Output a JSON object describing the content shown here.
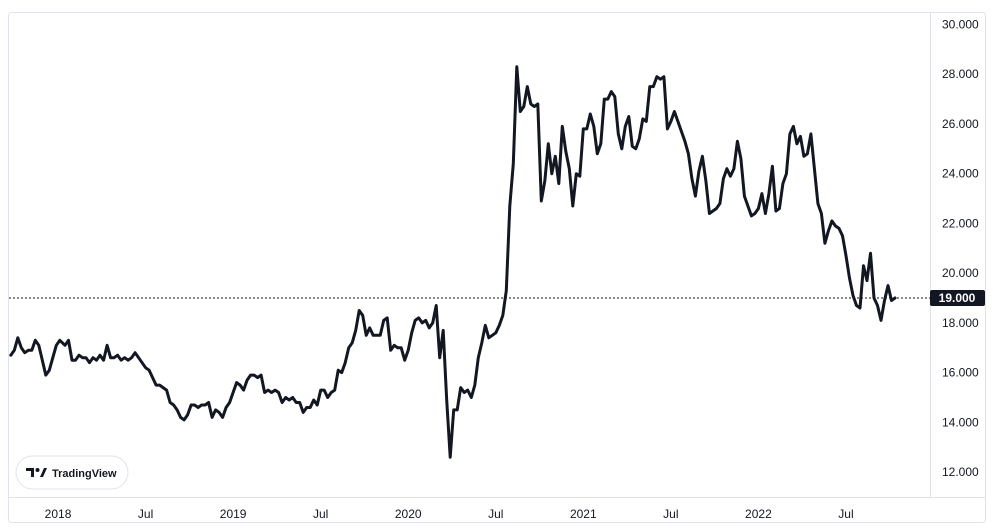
{
  "chart_data": {
    "type": "line",
    "title": "",
    "xlabel": "",
    "ylabel": "",
    "ylim": [
      11000,
      30500
    ],
    "xlim": [
      2017.72,
      2022.98
    ],
    "grid": false,
    "legend": "none",
    "x_tick_labels": [
      {
        "label": "2018",
        "x": 2018.0
      },
      {
        "label": "Jul",
        "x": 2018.5
      },
      {
        "label": "2019",
        "x": 2019.0
      },
      {
        "label": "Jul",
        "x": 2019.5
      },
      {
        "label": "2020",
        "x": 2020.0
      },
      {
        "label": "Jul",
        "x": 2020.5
      },
      {
        "label": "2021",
        "x": 2021.0
      },
      {
        "label": "Jul",
        "x": 2021.5
      },
      {
        "label": "2022",
        "x": 2022.0
      },
      {
        "label": "Jul",
        "x": 2022.5
      }
    ],
    "y_tick_labels": [
      {
        "label": "12.000",
        "y": 12000
      },
      {
        "label": "14.000",
        "y": 14000
      },
      {
        "label": "16.000",
        "y": 16000
      },
      {
        "label": "18.000",
        "y": 18000
      },
      {
        "label": "20.000",
        "y": 20000
      },
      {
        "label": "22.000",
        "y": 22000
      },
      {
        "label": "24.000",
        "y": 24000
      },
      {
        "label": "26.000",
        "y": 26000
      },
      {
        "label": "28.000",
        "y": 28000
      },
      {
        "label": "30.000",
        "y": 30000
      }
    ],
    "last_price": {
      "label": "19.000",
      "value": 19000
    },
    "series": [
      {
        "color": "#131722",
        "points": [
          [
            2017.73,
            16700
          ],
          [
            2017.75,
            16900
          ],
          [
            2017.77,
            17400
          ],
          [
            2017.79,
            17000
          ],
          [
            2017.81,
            16800
          ],
          [
            2017.83,
            16900
          ],
          [
            2017.85,
            16900
          ],
          [
            2017.87,
            17300
          ],
          [
            2017.89,
            17100
          ],
          [
            2017.91,
            16500
          ],
          [
            2017.93,
            15900
          ],
          [
            2017.95,
            16100
          ],
          [
            2017.97,
            16600
          ],
          [
            2017.99,
            17100
          ],
          [
            2018.01,
            17300
          ],
          [
            2018.04,
            17100
          ],
          [
            2018.06,
            17300
          ],
          [
            2018.08,
            16500
          ],
          [
            2018.1,
            16500
          ],
          [
            2018.12,
            16700
          ],
          [
            2018.14,
            16600
          ],
          [
            2018.16,
            16600
          ],
          [
            2018.18,
            16400
          ],
          [
            2018.2,
            16600
          ],
          [
            2018.22,
            16500
          ],
          [
            2018.24,
            16700
          ],
          [
            2018.26,
            16500
          ],
          [
            2018.28,
            17100
          ],
          [
            2018.3,
            16600
          ],
          [
            2018.32,
            16600
          ],
          [
            2018.34,
            16700
          ],
          [
            2018.36,
            16500
          ],
          [
            2018.38,
            16600
          ],
          [
            2018.4,
            16500
          ],
          [
            2018.42,
            16600
          ],
          [
            2018.44,
            16800
          ],
          [
            2018.46,
            16600
          ],
          [
            2018.48,
            16400
          ],
          [
            2018.5,
            16200
          ],
          [
            2018.52,
            16100
          ],
          [
            2018.54,
            15800
          ],
          [
            2018.56,
            15500
          ],
          [
            2018.58,
            15500
          ],
          [
            2018.6,
            15400
          ],
          [
            2018.62,
            15300
          ],
          [
            2018.64,
            14800
          ],
          [
            2018.66,
            14700
          ],
          [
            2018.68,
            14500
          ],
          [
            2018.7,
            14200
          ],
          [
            2018.72,
            14100
          ],
          [
            2018.74,
            14300
          ],
          [
            2018.76,
            14700
          ],
          [
            2018.78,
            14700
          ],
          [
            2018.8,
            14600
          ],
          [
            2018.82,
            14700
          ],
          [
            2018.84,
            14700
          ],
          [
            2018.86,
            14800
          ],
          [
            2018.88,
            14200
          ],
          [
            2018.9,
            14500
          ],
          [
            2018.92,
            14400
          ],
          [
            2018.94,
            14200
          ],
          [
            2018.96,
            14600
          ],
          [
            2018.98,
            14800
          ],
          [
            2019.0,
            15200
          ],
          [
            2019.02,
            15600
          ],
          [
            2019.04,
            15500
          ],
          [
            2019.06,
            15300
          ],
          [
            2019.08,
            15700
          ],
          [
            2019.1,
            15900
          ],
          [
            2019.12,
            15900
          ],
          [
            2019.14,
            15800
          ],
          [
            2019.16,
            15900
          ],
          [
            2019.18,
            15200
          ],
          [
            2019.2,
            15300
          ],
          [
            2019.22,
            15200
          ],
          [
            2019.24,
            15300
          ],
          [
            2019.26,
            15200
          ],
          [
            2019.28,
            14800
          ],
          [
            2019.3,
            15000
          ],
          [
            2019.32,
            14900
          ],
          [
            2019.34,
            15000
          ],
          [
            2019.36,
            14800
          ],
          [
            2019.38,
            14800
          ],
          [
            2019.4,
            14400
          ],
          [
            2019.42,
            14600
          ],
          [
            2019.44,
            14600
          ],
          [
            2019.46,
            14900
          ],
          [
            2019.48,
            14700
          ],
          [
            2019.5,
            15300
          ],
          [
            2019.52,
            15300
          ],
          [
            2019.54,
            15000
          ],
          [
            2019.56,
            15200
          ],
          [
            2019.58,
            15300
          ],
          [
            2019.6,
            16100
          ],
          [
            2019.62,
            16000
          ],
          [
            2019.64,
            16400
          ],
          [
            2019.66,
            17000
          ],
          [
            2019.68,
            17200
          ],
          [
            2019.7,
            17700
          ],
          [
            2019.72,
            18500
          ],
          [
            2019.74,
            18300
          ],
          [
            2019.76,
            17500
          ],
          [
            2019.78,
            17800
          ],
          [
            2019.8,
            17500
          ],
          [
            2019.82,
            17500
          ],
          [
            2019.84,
            17500
          ],
          [
            2019.86,
            18100
          ],
          [
            2019.88,
            18200
          ],
          [
            2019.9,
            16900
          ],
          [
            2019.92,
            17100
          ],
          [
            2019.94,
            17000
          ],
          [
            2019.96,
            17000
          ],
          [
            2019.98,
            16500
          ],
          [
            2020.0,
            16900
          ],
          [
            2020.02,
            17600
          ],
          [
            2020.04,
            18100
          ],
          [
            2020.06,
            18200
          ],
          [
            2020.08,
            18000
          ],
          [
            2020.1,
            18100
          ],
          [
            2020.12,
            17800
          ],
          [
            2020.14,
            18000
          ],
          [
            2020.16,
            18700
          ],
          [
            2020.18,
            16600
          ],
          [
            2020.2,
            17700
          ],
          [
            2020.22,
            14900
          ],
          [
            2020.24,
            12600
          ],
          [
            2020.26,
            14500
          ],
          [
            2020.28,
            14500
          ],
          [
            2020.3,
            15400
          ],
          [
            2020.32,
            15200
          ],
          [
            2020.34,
            15300
          ],
          [
            2020.36,
            15000
          ],
          [
            2020.38,
            15500
          ],
          [
            2020.4,
            16600
          ],
          [
            2020.42,
            17200
          ],
          [
            2020.44,
            17900
          ],
          [
            2020.46,
            17400
          ],
          [
            2020.48,
            17500
          ],
          [
            2020.5,
            17600
          ],
          [
            2020.52,
            17900
          ],
          [
            2020.54,
            18300
          ],
          [
            2020.56,
            19300
          ],
          [
            2020.58,
            22700
          ],
          [
            2020.6,
            24400
          ],
          [
            2020.62,
            28300
          ],
          [
            2020.64,
            26500
          ],
          [
            2020.66,
            26700
          ],
          [
            2020.68,
            27500
          ],
          [
            2020.7,
            26800
          ],
          [
            2020.72,
            26700
          ],
          [
            2020.74,
            26800
          ],
          [
            2020.76,
            22900
          ],
          [
            2020.78,
            23700
          ],
          [
            2020.8,
            25200
          ],
          [
            2020.82,
            24000
          ],
          [
            2020.84,
            24700
          ],
          [
            2020.86,
            23600
          ],
          [
            2020.88,
            25900
          ],
          [
            2020.9,
            24900
          ],
          [
            2020.92,
            24200
          ],
          [
            2020.94,
            22700
          ],
          [
            2020.96,
            24000
          ],
          [
            2020.98,
            23900
          ],
          [
            2021.0,
            25800
          ],
          [
            2021.02,
            25800
          ],
          [
            2021.04,
            26400
          ],
          [
            2021.06,
            25900
          ],
          [
            2021.08,
            24800
          ],
          [
            2021.1,
            25200
          ],
          [
            2021.12,
            27000
          ],
          [
            2021.14,
            27000
          ],
          [
            2021.16,
            27300
          ],
          [
            2021.18,
            27100
          ],
          [
            2021.2,
            25600
          ],
          [
            2021.22,
            25000
          ],
          [
            2021.24,
            25900
          ],
          [
            2021.26,
            26300
          ],
          [
            2021.28,
            25100
          ],
          [
            2021.3,
            25000
          ],
          [
            2021.32,
            25400
          ],
          [
            2021.34,
            26200
          ],
          [
            2021.36,
            26100
          ],
          [
            2021.38,
            27500
          ],
          [
            2021.4,
            27500
          ],
          [
            2021.42,
            27900
          ],
          [
            2021.44,
            27800
          ],
          [
            2021.46,
            27900
          ],
          [
            2021.48,
            25800
          ],
          [
            2021.5,
            26100
          ],
          [
            2021.52,
            26500
          ],
          [
            2021.54,
            26100
          ],
          [
            2021.56,
            25700
          ],
          [
            2021.58,
            25300
          ],
          [
            2021.6,
            24800
          ],
          [
            2021.62,
            23800
          ],
          [
            2021.64,
            23100
          ],
          [
            2021.66,
            24100
          ],
          [
            2021.68,
            24700
          ],
          [
            2021.7,
            23700
          ],
          [
            2021.72,
            22400
          ],
          [
            2021.74,
            22500
          ],
          [
            2021.76,
            22600
          ],
          [
            2021.78,
            22800
          ],
          [
            2021.8,
            23800
          ],
          [
            2021.82,
            24200
          ],
          [
            2021.84,
            23900
          ],
          [
            2021.86,
            24200
          ],
          [
            2021.88,
            25300
          ],
          [
            2021.9,
            24600
          ],
          [
            2021.92,
            23100
          ],
          [
            2021.94,
            22700
          ],
          [
            2021.96,
            22300
          ],
          [
            2021.98,
            22400
          ],
          [
            2022.0,
            22600
          ],
          [
            2022.02,
            23200
          ],
          [
            2022.04,
            22400
          ],
          [
            2022.06,
            23200
          ],
          [
            2022.08,
            24300
          ],
          [
            2022.1,
            22500
          ],
          [
            2022.12,
            22600
          ],
          [
            2022.14,
            23600
          ],
          [
            2022.16,
            24000
          ],
          [
            2022.18,
            25600
          ],
          [
            2022.2,
            25900
          ],
          [
            2022.22,
            25200
          ],
          [
            2022.24,
            25500
          ],
          [
            2022.26,
            24700
          ],
          [
            2022.28,
            24800
          ],
          [
            2022.3,
            25600
          ],
          [
            2022.32,
            24200
          ],
          [
            2022.34,
            22800
          ],
          [
            2022.36,
            22400
          ],
          [
            2022.38,
            21200
          ],
          [
            2022.4,
            21700
          ],
          [
            2022.42,
            22100
          ],
          [
            2022.44,
            21900
          ],
          [
            2022.46,
            21800
          ],
          [
            2022.48,
            21500
          ],
          [
            2022.5,
            20700
          ],
          [
            2022.52,
            19800
          ],
          [
            2022.54,
            19100
          ],
          [
            2022.56,
            18700
          ],
          [
            2022.58,
            18600
          ],
          [
            2022.6,
            20300
          ],
          [
            2022.62,
            19700
          ],
          [
            2022.64,
            20800
          ],
          [
            2022.66,
            19000
          ],
          [
            2022.68,
            18700
          ],
          [
            2022.7,
            18100
          ],
          [
            2022.72,
            18900
          ],
          [
            2022.74,
            19500
          ],
          [
            2022.76,
            18900
          ],
          [
            2022.78,
            19000
          ]
        ]
      }
    ]
  },
  "branding": {
    "logo_text": "TradingView",
    "logo_icon": "tradingview-logo-icon"
  },
  "colors": {
    "line": "#131722",
    "price_tag_bg": "#131722",
    "price_tag_text": "#ffffff",
    "axis_text": "#131722",
    "border": "#e0e3eb"
  }
}
